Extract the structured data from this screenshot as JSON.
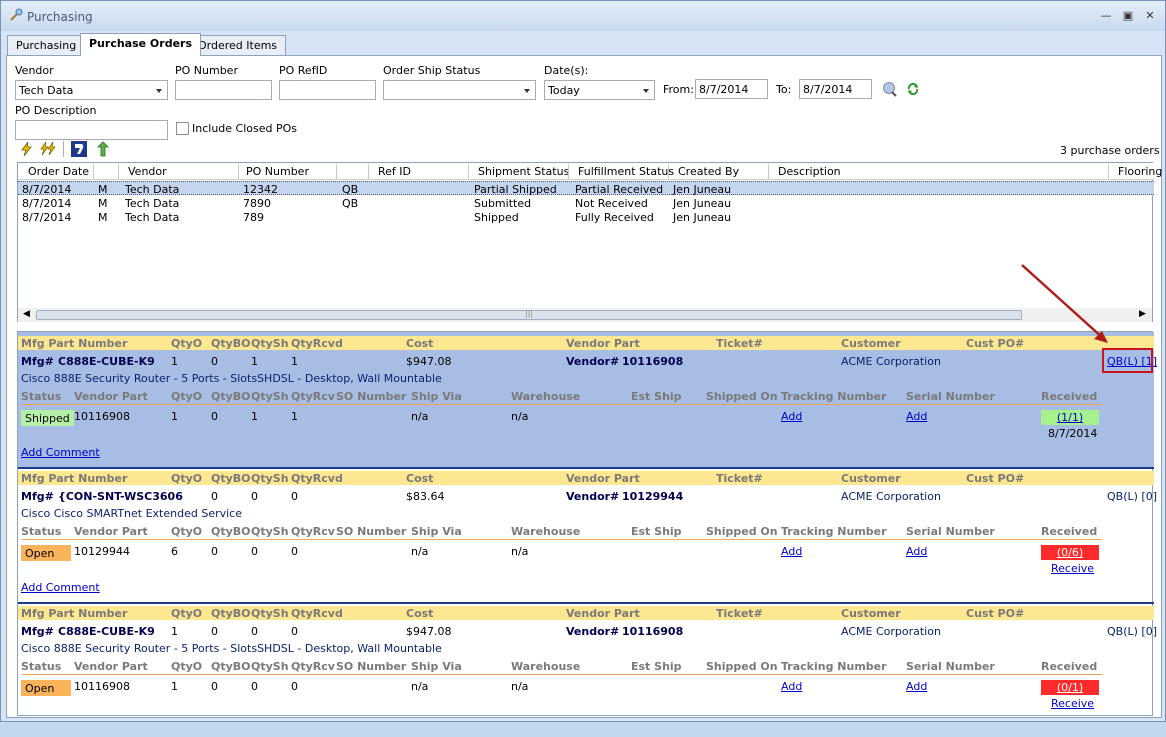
{
  "window": {
    "title": "Purchasing"
  },
  "tabs": [
    "Purchasing",
    "Purchase Orders",
    "Ordered Items"
  ],
  "filters": {
    "vendor_label": "Vendor",
    "vendor_value": "Tech Data",
    "po_number_label": "PO Number",
    "po_number_value": "",
    "po_refid_label": "PO RefID",
    "po_refid_value": "",
    "ship_status_label": "Order Ship Status",
    "ship_status_value": "",
    "dates_label": "Date(s):",
    "dates_value": "Today",
    "from_label": "From:",
    "from_value": "8/7/2014",
    "to_label": "To:",
    "to_value": "8/7/2014",
    "po_desc_label": "PO Description",
    "po_desc_value": "",
    "include_closed_label": "Include Closed POs"
  },
  "po_count": "3 purchase orders",
  "grid": {
    "columns": [
      "Order Date",
      "Vendor",
      "PO Number",
      "Ref ID",
      "Shipment Status",
      "Fulfillment Status",
      "Created By",
      "Description",
      "Flooring"
    ],
    "rows": [
      {
        "date": "8/7/2014",
        "m": "M",
        "vendor": "Tech Data",
        "po": "12342",
        "ref": "QB",
        "ship": "Partial Shipped",
        "fulfill": "Partial Received",
        "by": "Jen Juneau"
      },
      {
        "date": "8/7/2014",
        "m": "M",
        "vendor": "Tech Data",
        "po": "7890",
        "ref": "QB",
        "ship": "Submitted",
        "fulfill": "Not Received",
        "by": "Jen Juneau"
      },
      {
        "date": "8/7/2014",
        "m": "M",
        "vendor": "Tech Data",
        "po": "789",
        "ref": "",
        "ship": "Shipped",
        "fulfill": "Fully Received",
        "by": "Jen Juneau"
      }
    ],
    "scroll_grip": "|||"
  },
  "detail_headers": {
    "mfg_part": "Mfg Part Number",
    "qtyo": "QtyO",
    "qtybo": "QtyBO",
    "qtysh": "QtySh",
    "qtyrcvd": "QtyRcvd",
    "cost": "Cost",
    "vendor_part": "Vendor Part",
    "ticket": "Ticket#",
    "customer": "Customer",
    "cust_po": "Cust PO#"
  },
  "sub_headers": {
    "status": "Status",
    "vendor_part": "Vendor Part",
    "qtyo": "QtyO",
    "qtybo": "QtyBO",
    "qtysh": "QtySh",
    "qtyrcv": "QtyRcv",
    "so_number": "SO Number",
    "ship_via": "Ship Via",
    "warehouse": "Warehouse",
    "est_ship": "Est Ship",
    "shipped_on": "Shipped On",
    "tracking": "Tracking Number",
    "serial": "Serial Number",
    "received": "Received"
  },
  "mfg_prefix": "Mfg#",
  "vendor_prefix": "Vendor#",
  "add_comment": "Add Comment",
  "items": [
    {
      "mfg": "C888E-CUBE-K9",
      "qtyo": "1",
      "qtybo": "0",
      "qtysh": "1",
      "qtyrcvd": "1",
      "cost": "$947.08",
      "vendor_part": "10116908",
      "customer": "ACME Corporation",
      "qb": "QB(L) [1]",
      "desc": "Cisco 888E Security Router - 5 Ports - SlotsSHDSL - Desktop, Wall Mountable",
      "status": "Shipped",
      "status_color": "#b6f0a8",
      "vpart": "10116908",
      "sqtyo": "1",
      "sqtybo": "0",
      "sqtysh": "1",
      "sqtyrcv": "1",
      "ship_via": "n/a",
      "warehouse": "n/a",
      "track": "Add",
      "serial": "Add",
      "recv": "(1/1)",
      "recv_color": "#a6f08e",
      "recv_sub": "8/7/2014"
    },
    {
      "mfg": "{CON-SNT-WSC3606",
      "qtyo": "",
      "qtybo": "0",
      "qtysh": "0",
      "qtyrcvd": "0",
      "cost": "$83.64",
      "vendor_part": "10129944",
      "customer": "ACME Corporation",
      "qb": "QB(L) [0]",
      "desc": "Cisco Cisco SMARTnet Extended Service",
      "status": "Open",
      "status_color": "#f9b35b",
      "vpart": "10129944",
      "sqtyo": "6",
      "sqtybo": "0",
      "sqtysh": "0",
      "sqtyrcv": "0",
      "ship_via": "n/a",
      "warehouse": "n/a",
      "track": "Add",
      "serial": "Add",
      "recv": "(0/6)",
      "recv_color": "#ff2a2a",
      "recv_sub": "Receive"
    },
    {
      "mfg": "C888E-CUBE-K9",
      "qtyo": "1",
      "qtybo": "0",
      "qtysh": "0",
      "qtyrcvd": "0",
      "cost": "$947.08",
      "vendor_part": "10116908",
      "customer": "ACME Corporation",
      "qb": "QB(L) [0]",
      "desc": "Cisco 888E Security Router - 5 Ports - SlotsSHDSL - Desktop, Wall Mountable",
      "status": "Open",
      "status_color": "#f9b35b",
      "vpart": "10116908",
      "sqtyo": "1",
      "sqtybo": "0",
      "sqtysh": "0",
      "sqtyrcv": "0",
      "ship_via": "n/a",
      "warehouse": "n/a",
      "track": "Add",
      "serial": "Add",
      "recv": "(0/1)",
      "recv_color": "#ff2a2a",
      "recv_sub": "Receive"
    }
  ]
}
